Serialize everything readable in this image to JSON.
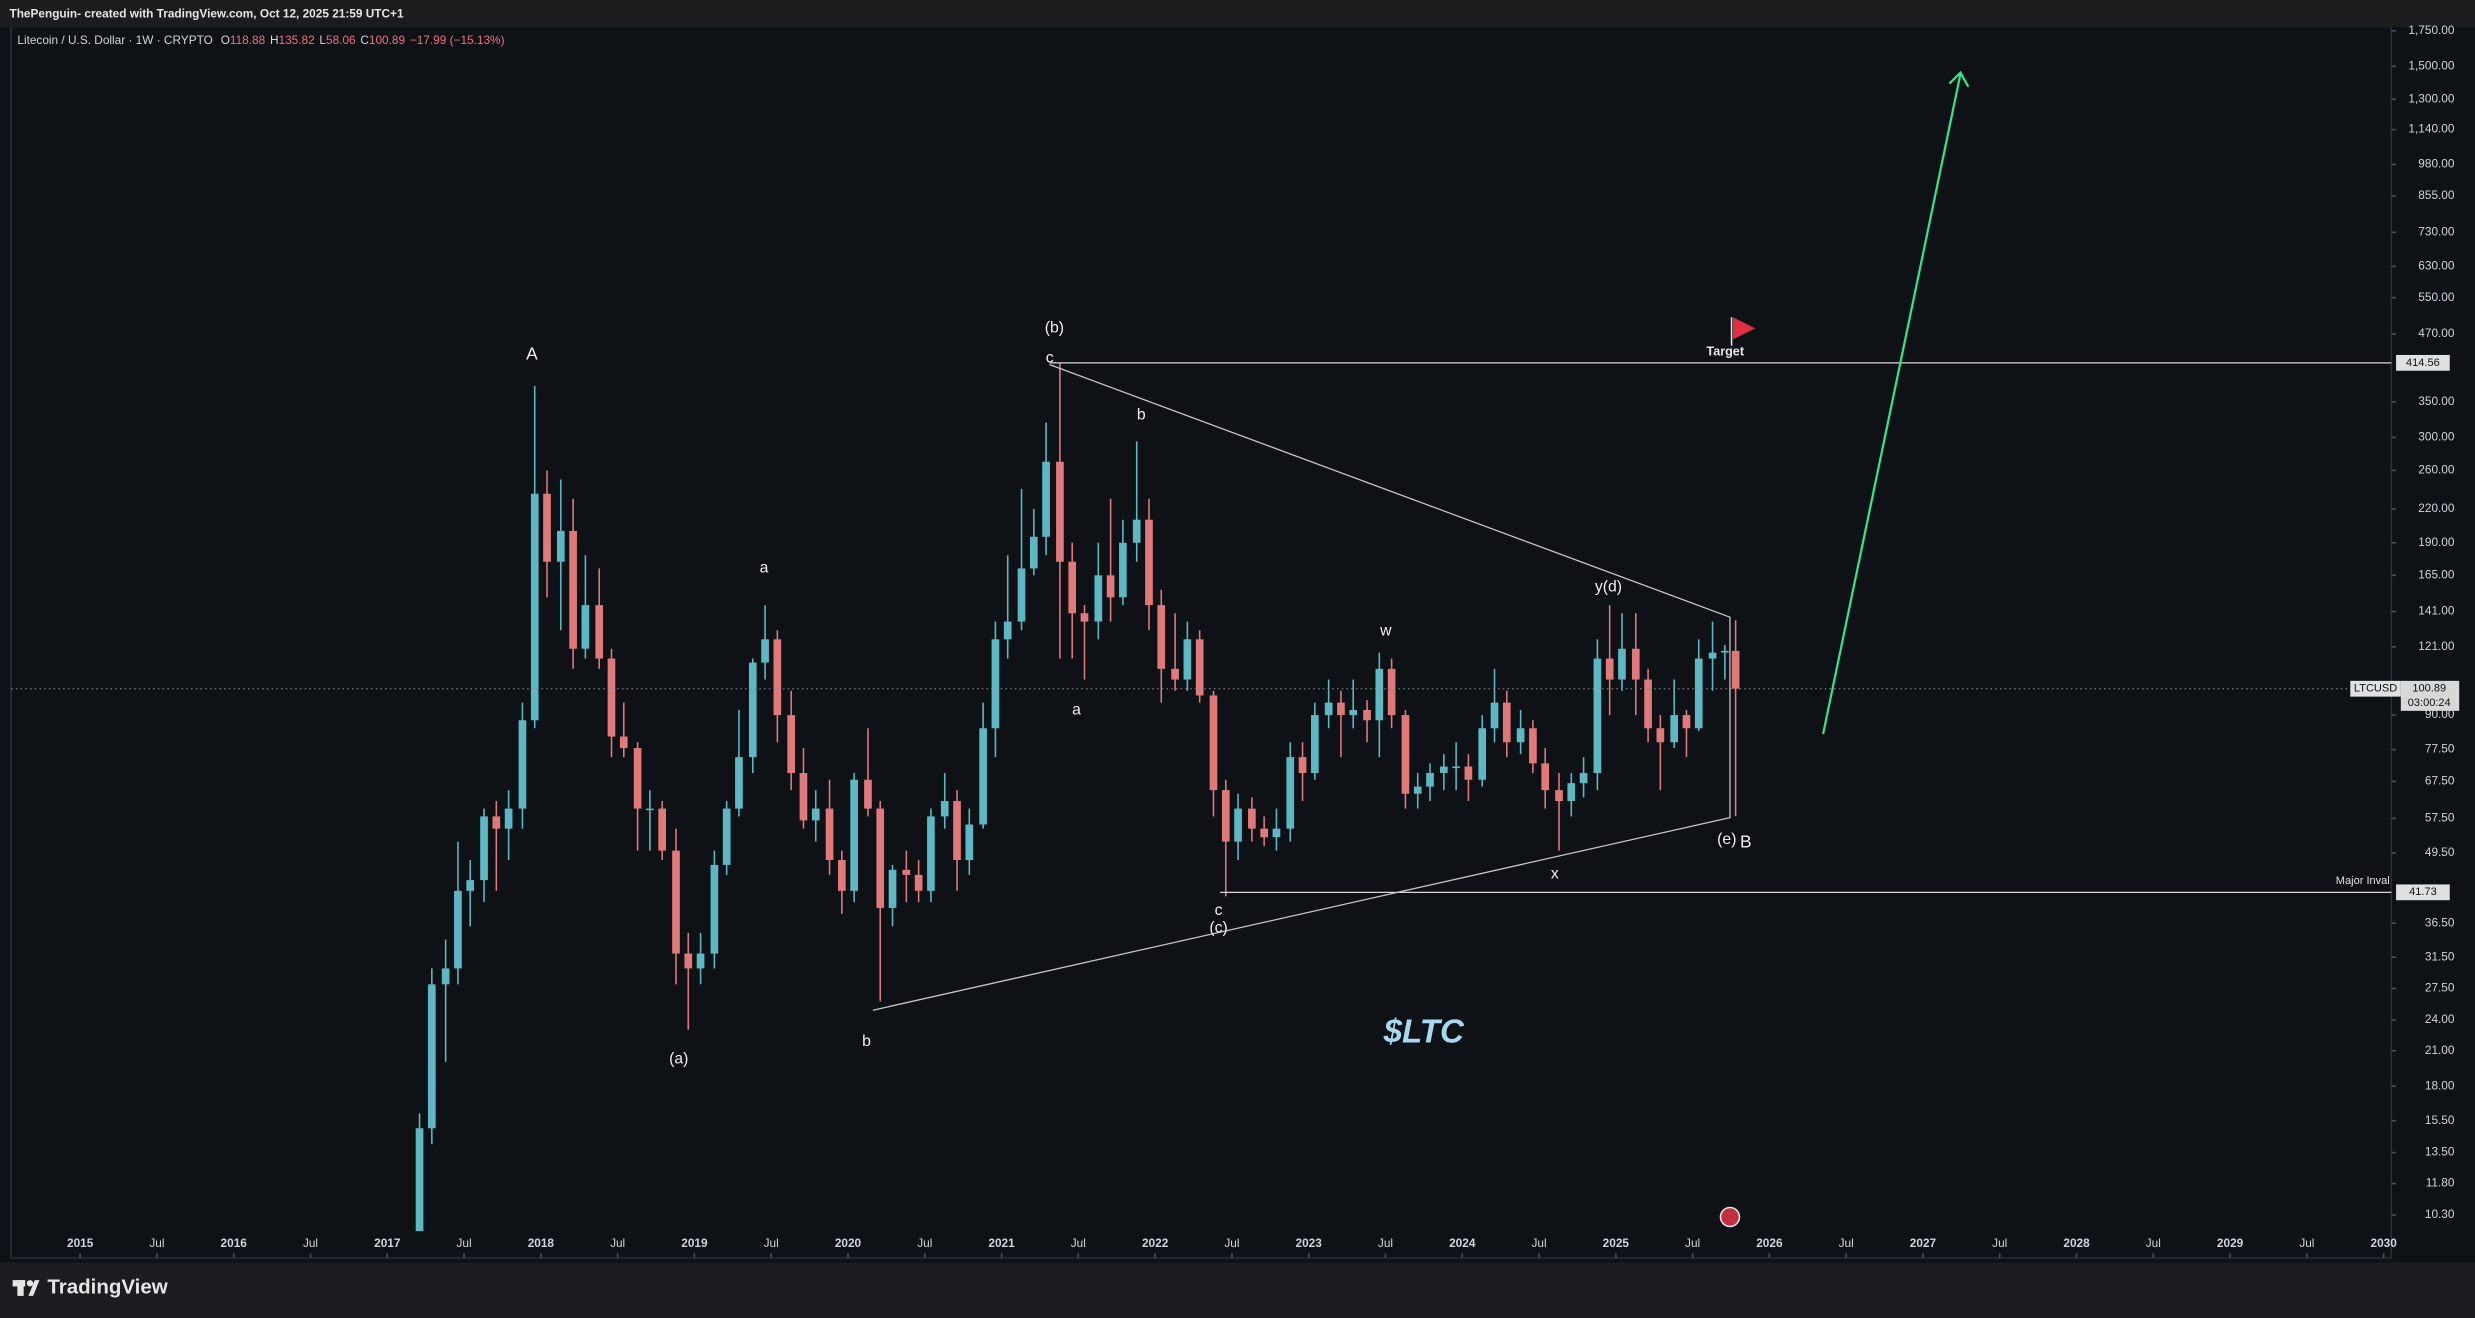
{
  "header": {
    "caption": "ThePenguin- created with TradingView.com, Oct 12, 2025 21:59 UTC+1"
  },
  "chart_data": {
    "type": "candlestick",
    "title": "Litecoin / U.S. Dollar · 1W · CRYPTO",
    "quote": [
      {
        "key": "O",
        "value": "118.88"
      },
      {
        "key": "H",
        "value": "135.82"
      },
      {
        "key": "L",
        "value": "58.06"
      },
      {
        "key": "C",
        "value": "100.89"
      }
    ],
    "change": "−17.99 (−15.13%)",
    "log_scale": true,
    "grid": false,
    "up_color": "#5db8c4",
    "down_color": "#e0797a",
    "x": [
      2017.21,
      2017.29,
      2017.38,
      2017.46,
      2017.54,
      2017.63,
      2017.71,
      2017.79,
      2017.88,
      2017.96,
      2018.04,
      2018.13,
      2018.21,
      2018.29,
      2018.38,
      2018.46,
      2018.54,
      2018.63,
      2018.71,
      2018.79,
      2018.88,
      2018.96,
      2019.04,
      2019.13,
      2019.21,
      2019.29,
      2019.38,
      2019.46,
      2019.54,
      2019.63,
      2019.71,
      2019.79,
      2019.88,
      2019.96,
      2020.04,
      2020.13,
      2020.21,
      2020.29,
      2020.38,
      2020.46,
      2020.54,
      2020.63,
      2020.71,
      2020.79,
      2020.88,
      2020.96,
      2021.04,
      2021.13,
      2021.21,
      2021.29,
      2021.38,
      2021.46,
      2021.54,
      2021.63,
      2021.71,
      2021.79,
      2021.88,
      2021.96,
      2022.04,
      2022.13,
      2022.21,
      2022.29,
      2022.38,
      2022.46,
      2022.54,
      2022.63,
      2022.71,
      2022.79,
      2022.88,
      2022.96,
      2023.04,
      2023.13,
      2023.21,
      2023.29,
      2023.38,
      2023.46,
      2023.54,
      2023.63,
      2023.71,
      2023.79,
      2023.88,
      2023.96,
      2024.04,
      2024.13,
      2024.21,
      2024.29,
      2024.38,
      2024.46,
      2024.54,
      2024.63,
      2024.71,
      2024.79,
      2024.88,
      2024.96,
      2025.04,
      2025.13,
      2025.21,
      2025.29,
      2025.38,
      2025.46,
      2025.54,
      2025.63,
      2025.71,
      2025.78
    ],
    "open": [
      9.5,
      15,
      28,
      30,
      42,
      44,
      58,
      55,
      60,
      88,
      235,
      175,
      200,
      120,
      145,
      115,
      82,
      78,
      60,
      60,
      50,
      32,
      30,
      32,
      47,
      60,
      75,
      113,
      125,
      90,
      70,
      57,
      60,
      48,
      42,
      68,
      60,
      39,
      46,
      45,
      42,
      58,
      62,
      48,
      56,
      85,
      125,
      135,
      170,
      195,
      270,
      175,
      140,
      135,
      165,
      150,
      190,
      210,
      145,
      110,
      105,
      125,
      98,
      65,
      52,
      60,
      55,
      53,
      55,
      75,
      70,
      90,
      95,
      90,
      92,
      88,
      110,
      90,
      64,
      66,
      70,
      72,
      72,
      68,
      85,
      95,
      80,
      85,
      73,
      65,
      62,
      67,
      70,
      115,
      105,
      120,
      105,
      85,
      80,
      90,
      85,
      115,
      118,
      118.88
    ],
    "high": [
      16,
      30,
      34,
      52,
      48,
      60,
      62,
      65,
      95,
      375,
      260,
      250,
      230,
      180,
      170,
      120,
      95,
      80,
      65,
      62,
      55,
      35,
      35,
      50,
      62,
      92,
      115,
      145,
      130,
      100,
      78,
      65,
      68,
      50,
      70,
      85,
      62,
      47,
      50,
      48,
      60,
      70,
      65,
      60,
      95,
      135,
      180,
      240,
      220,
      320,
      415,
      190,
      145,
      190,
      230,
      210,
      295,
      230,
      155,
      140,
      135,
      130,
      100,
      68,
      64,
      63,
      58,
      60,
      80,
      80,
      95,
      105,
      100,
      105,
      96,
      118,
      115,
      92,
      70,
      73,
      76,
      80,
      76,
      90,
      110,
      100,
      92,
      88,
      78,
      70,
      70,
      75,
      125,
      145,
      140,
      140,
      110,
      90,
      105,
      92,
      125,
      135,
      122,
      135.82
    ],
    "low": [
      9,
      14,
      20,
      28,
      36,
      40,
      42,
      48,
      55,
      85,
      150,
      130,
      110,
      115,
      110,
      75,
      75,
      50,
      50,
      48,
      28,
      23,
      28,
      30,
      45,
      58,
      70,
      105,
      80,
      65,
      55,
      52,
      45,
      38,
      40,
      58,
      26,
      36,
      40,
      40,
      40,
      55,
      42,
      45,
      55,
      75,
      115,
      130,
      165,
      180,
      115,
      115,
      105,
      125,
      135,
      145,
      175,
      130,
      95,
      100,
      100,
      95,
      58,
      41,
      48,
      52,
      51,
      50,
      52,
      62,
      68,
      85,
      75,
      85,
      80,
      75,
      85,
      60,
      60,
      62,
      65,
      65,
      62,
      66,
      80,
      75,
      76,
      70,
      60,
      50,
      58,
      63,
      65,
      90,
      100,
      90,
      80,
      65,
      78,
      75,
      84,
      100,
      105,
      58.06
    ],
    "close": [
      15,
      28,
      30,
      42,
      44,
      58,
      55,
      60,
      88,
      235,
      175,
      200,
      120,
      145,
      115,
      82,
      78,
      60,
      60,
      50,
      32,
      30,
      32,
      47,
      60,
      75,
      113,
      125,
      90,
      70,
      57,
      60,
      48,
      42,
      68,
      60,
      39,
      46,
      45,
      42,
      58,
      62,
      48,
      56,
      85,
      125,
      135,
      170,
      195,
      270,
      175,
      140,
      135,
      165,
      150,
      190,
      210,
      145,
      110,
      105,
      125,
      98,
      65,
      52,
      60,
      55,
      53,
      55,
      75,
      70,
      90,
      95,
      90,
      92,
      88,
      110,
      90,
      64,
      66,
      70,
      72,
      72,
      68,
      85,
      95,
      80,
      85,
      73,
      65,
      62,
      67,
      70,
      115,
      105,
      120,
      105,
      85,
      80,
      90,
      85,
      115,
      118,
      118.88,
      100.89
    ],
    "xlim": [
      2014.55,
      2030.05
    ],
    "ylim": [
      9.6,
      1780
    ],
    "xticks": [
      2015,
      {
        "value": 2015.5,
        "label": "Jul"
      },
      2016,
      {
        "value": 2016.5,
        "label": "Jul"
      },
      2017,
      {
        "value": 2017.5,
        "label": "Jul"
      },
      2018,
      {
        "value": 2018.5,
        "label": "Jul"
      },
      2019,
      {
        "value": 2019.5,
        "label": "Jul"
      },
      2020,
      {
        "value": 2020.5,
        "label": "Jul"
      },
      2021,
      {
        "value": 2021.5,
        "label": "Jul"
      },
      2022,
      {
        "value": 2022.5,
        "label": "Jul"
      },
      2023,
      {
        "value": 2023.5,
        "label": "Jul"
      },
      2024,
      {
        "value": 2024.5,
        "label": "Jul"
      },
      2025,
      {
        "value": 2025.5,
        "label": "Jul"
      },
      2026,
      {
        "value": 2026.5,
        "label": "Jul"
      },
      2027,
      {
        "value": 2027.5,
        "label": "Jul"
      },
      2028,
      {
        "value": 2028.5,
        "label": "Jul"
      },
      2029,
      {
        "value": 2029.5,
        "label": "Jul"
      },
      2030
    ],
    "yticks": [
      {
        "value": 1750,
        "label": "1,750.00"
      },
      {
        "value": 1500,
        "label": "1,500.00"
      },
      {
        "value": 1300,
        "label": "1,300.00"
      },
      {
        "value": 1140,
        "label": "1,140.00"
      },
      {
        "value": 980,
        "label": "980.00"
      },
      {
        "value": 855,
        "label": "855.00"
      },
      {
        "value": 730,
        "label": "730.00"
      },
      {
        "value": 630,
        "label": "630.00"
      },
      {
        "value": 550,
        "label": "550.00"
      },
      {
        "value": 470,
        "label": "470.00"
      },
      {
        "value": 350,
        "label": "350.00"
      },
      {
        "value": 300,
        "label": "300.00"
      },
      {
        "value": 260,
        "label": "260.00"
      },
      {
        "value": 220,
        "label": "220.00"
      },
      {
        "value": 190,
        "label": "190.00"
      },
      {
        "value": 165,
        "label": "165.00"
      },
      {
        "value": 141,
        "label": "141.00"
      },
      {
        "value": 121,
        "label": "121.00"
      },
      {
        "value": 90,
        "label": "90.00"
      },
      {
        "value": 77.5,
        "label": "77.50"
      },
      {
        "value": 67.5,
        "label": "67.50"
      },
      {
        "value": 57.5,
        "label": "57.50"
      },
      {
        "value": 49.5,
        "label": "49.50"
      },
      {
        "value": 36.5,
        "label": "36.50"
      },
      {
        "value": 31.5,
        "label": "31.50"
      },
      {
        "value": 27.5,
        "label": "27.50"
      },
      {
        "value": 24,
        "label": "24.00"
      },
      {
        "value": 21,
        "label": "21.00"
      },
      {
        "value": 18,
        "label": "18.00"
      },
      {
        "value": 15.5,
        "label": "15.50"
      },
      {
        "value": 13.5,
        "label": "13.50"
      },
      {
        "value": 11.8,
        "label": "11.80"
      },
      {
        "value": 10.3,
        "label": "10.30"
      }
    ],
    "price_lines": [
      {
        "value": 414.56
      },
      {
        "value": 41.73,
        "text": "Major Inval"
      }
    ],
    "last_price": {
      "symbol": "LTCUSD",
      "value": 100.89,
      "countdown": "03:00:24"
    },
    "target": "Target",
    "annotations": [
      "A",
      "(b)",
      "c",
      "b",
      "a",
      "y(d)",
      "w",
      "a",
      "x",
      "c",
      "(c)",
      "(e)",
      "B",
      "(a)",
      "b"
    ],
    "watermark": "$LTC"
  },
  "footer": {
    "brand": "TradingView"
  }
}
